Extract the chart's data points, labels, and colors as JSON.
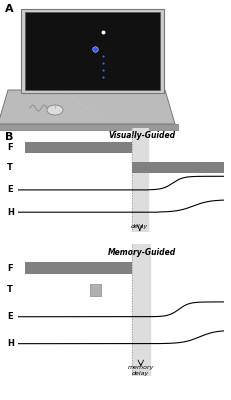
{
  "fig_width": 2.31,
  "fig_height": 4.0,
  "dpi": 100,
  "bg_color": "#ffffff",
  "label_A": "A",
  "label_B": "B",
  "visually_guided_title": "Visually-Guided",
  "memory_guided_title": "Memory-Guided",
  "row_labels": [
    "F",
    "T",
    "E",
    "H"
  ],
  "bar_color_dark": "#808080",
  "bar_color_light": "#b0b0b0",
  "delay_band_color": "#dddddd",
  "delay_label": "delay",
  "memory_delay_label": "memory\ndelay",
  "dotted_line_color": "#999999",
  "line_color": "#000000",
  "laptop_screen_color": "#111111",
  "laptop_border_color": "#888888",
  "laptop_base_color": "#aaaaaa",
  "dot_white": "#ffffff",
  "dot_blue": "#3355ff"
}
